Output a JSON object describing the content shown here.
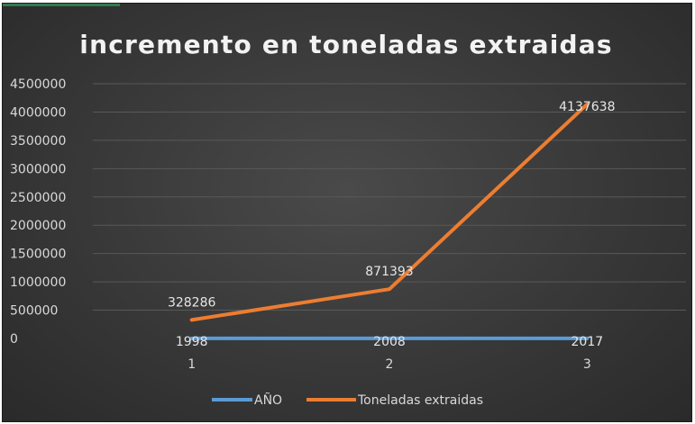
{
  "colors": {
    "background": "#3a3a3a",
    "gridline": "#595959",
    "text": "#d9d9d9",
    "series_ano": "#5b9bd5",
    "series_toneladas": "#ed7d31"
  },
  "chart_data": {
    "type": "line",
    "title": "incremento en toneladas extraidas",
    "xlabel": "",
    "ylabel": "",
    "categories": [
      "1",
      "2",
      "3"
    ],
    "ylim": [
      0,
      4500000
    ],
    "yticks": [
      0,
      500000,
      1000000,
      1500000,
      2000000,
      2500000,
      3000000,
      3500000,
      4000000,
      4500000
    ],
    "ytick_labels": [
      "0",
      "500000",
      "1000000",
      "1500000",
      "2000000",
      "2500000",
      "3000000",
      "3500000",
      "4000000",
      "4500000"
    ],
    "grid": true,
    "legend_position": "bottom",
    "series": [
      {
        "name": "AÑO",
        "values": [
          1998,
          2008,
          2017
        ],
        "data_labels": [
          "1998",
          "2008",
          "2017"
        ],
        "color": "#5b9bd5"
      },
      {
        "name": "Toneladas extraidas",
        "values": [
          328286,
          871393,
          4137638
        ],
        "data_labels": [
          "328286",
          "871393",
          "4137638"
        ],
        "color": "#ed7d31"
      }
    ]
  }
}
